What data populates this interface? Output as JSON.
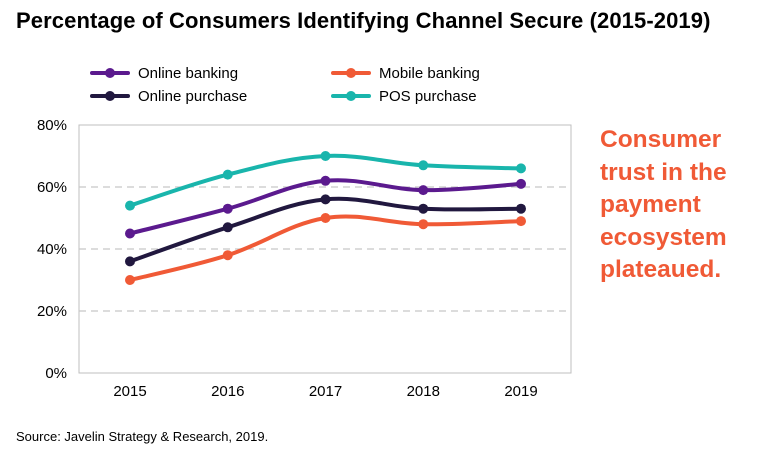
{
  "title": "Percentage of Consumers Identifying Channel Secure (2015-2019)",
  "callout": [
    "Consumer",
    "trust in the",
    "payment",
    "ecosystem",
    "plateaued."
  ],
  "source": "Source: Javelin Strategy & Research, 2019.",
  "colors": {
    "callout": "#f05a36",
    "grid": "#c8c8c8",
    "frame": "#bfbfbf"
  },
  "chart_data": {
    "type": "line",
    "title": "Percentage of Consumers Identifying Channel Secure (2015-2019)",
    "xlabel": "",
    "ylabel": "",
    "categories": [
      "2015",
      "2016",
      "2017",
      "2018",
      "2019"
    ],
    "ylim": [
      0,
      80
    ],
    "yticks": [
      0,
      20,
      40,
      60,
      80
    ],
    "ytick_labels": [
      "0%",
      "20%",
      "40%",
      "60%",
      "80%"
    ],
    "grid": true,
    "legend_position": "top",
    "series": [
      {
        "name": "Online banking",
        "color": "#5b1a8e",
        "values": [
          45,
          53,
          62,
          59,
          61
        ]
      },
      {
        "name": "Mobile banking",
        "color": "#f05a36",
        "values": [
          30,
          38,
          50,
          48,
          49
        ]
      },
      {
        "name": "Online purchase",
        "color": "#21183f",
        "values": [
          36,
          47,
          56,
          53,
          53
        ]
      },
      {
        "name": "POS purchase",
        "color": "#19b5ac",
        "values": [
          54,
          64,
          70,
          67,
          66
        ]
      }
    ]
  }
}
